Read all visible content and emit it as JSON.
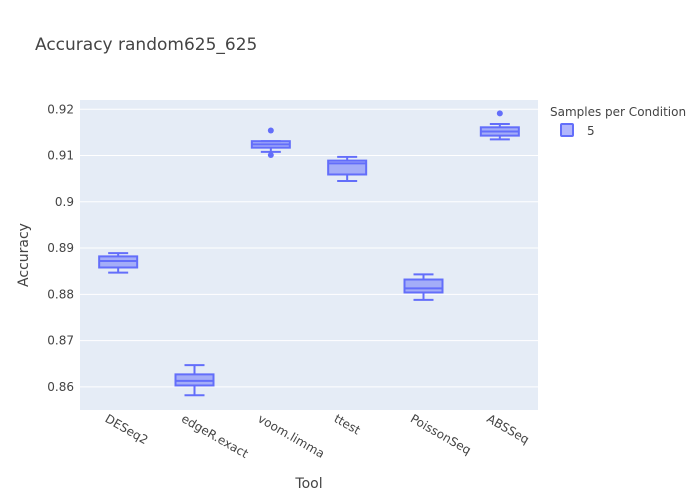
{
  "chart_data": {
    "type": "box",
    "title": "Accuracy random625_625",
    "xlabel": "Tool",
    "ylabel": "Accuracy",
    "categories": [
      "DESeq2",
      "edgeR.exact",
      "voom.limma",
      "ttest",
      "PoissonSeq",
      "ABSSeq"
    ],
    "ylim": [
      0.855,
      0.922
    ],
    "yticks": [
      0.86,
      0.87,
      0.88,
      0.89,
      0.9,
      0.91,
      0.92
    ],
    "ytick_labels": [
      "0.86",
      "0.87",
      "0.88",
      "0.89",
      "0.9",
      "0.91",
      "0.92"
    ],
    "grid": true,
    "legend": {
      "title": "Samples per Condition",
      "placement": "top-right",
      "entries": [
        "5"
      ]
    },
    "series": [
      {
        "name": "5",
        "color": "#636efa",
        "boxes": [
          {
            "category": "DESeq2",
            "min": 0.8847,
            "q1": 0.8858,
            "median": 0.8872,
            "q3": 0.8882,
            "max": 0.8889,
            "outliers": []
          },
          {
            "category": "edgeR.exact",
            "min": 0.8582,
            "q1": 0.8603,
            "median": 0.8613,
            "q3": 0.8627,
            "max": 0.8647,
            "outliers": []
          },
          {
            "category": "voom.limma",
            "min": 0.9108,
            "q1": 0.9117,
            "median": 0.9124,
            "q3": 0.9131,
            "max": 0.9131,
            "outliers": [
              0.9154,
              0.9101
            ]
          },
          {
            "category": "ttest",
            "min": 0.9045,
            "q1": 0.9059,
            "median": 0.9083,
            "q3": 0.9089,
            "max": 0.9097,
            "outliers": []
          },
          {
            "category": "PoissonSeq",
            "min": 0.8788,
            "q1": 0.8804,
            "median": 0.8813,
            "q3": 0.8832,
            "max": 0.8843,
            "outliers": []
          },
          {
            "category": "ABSSeq",
            "min": 0.9135,
            "q1": 0.9143,
            "median": 0.9152,
            "q3": 0.9161,
            "max": 0.9168,
            "outliers": [
              0.9191
            ]
          }
        ]
      }
    ]
  }
}
